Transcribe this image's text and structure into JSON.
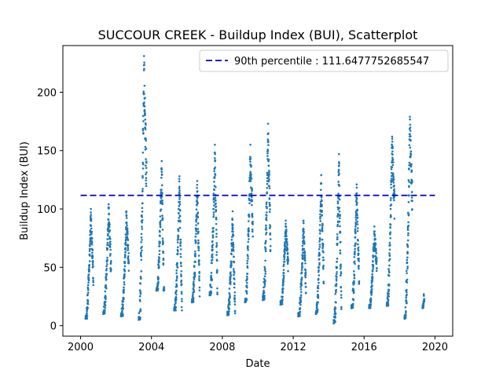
{
  "chart_data": {
    "type": "scatter",
    "title": "SUCCOUR CREEK - Buildup Index (BUI), Scatterplot",
    "xlabel": "Date",
    "ylabel": "Buildup Index (BUI)",
    "xlim": [
      1999.0,
      2021.0
    ],
    "ylim": [
      -9,
      240
    ],
    "x_ticks": [
      2000,
      2004,
      2008,
      2012,
      2016,
      2020
    ],
    "x_tick_labels": [
      "2000",
      "2004",
      "2008",
      "2012",
      "2016",
      "2020"
    ],
    "y_ticks": [
      0,
      50,
      100,
      150,
      200
    ],
    "y_tick_labels": [
      "0",
      "50",
      "100",
      "150",
      "200"
    ],
    "grid": false,
    "legend_position": "top-right",
    "point_color": "#1f77b4",
    "reference_line": {
      "label": "90th percentile : 111.6477752685547",
      "value": 111.6477752685547,
      "x_start": 2000.0,
      "x_end": 2020.0,
      "color": "#0000cc",
      "style": "dashed"
    },
    "seasons": [
      {
        "start": 2000.28,
        "end": 2000.72,
        "low": 6,
        "peak": 100,
        "end_value": 48
      },
      {
        "start": 2001.28,
        "end": 2001.72,
        "low": 10,
        "peak": 104,
        "end_value": 55
      },
      {
        "start": 2002.28,
        "end": 2002.72,
        "low": 8,
        "peak": 98,
        "end_value": 60
      },
      {
        "start": 2003.28,
        "end": 2003.72,
        "low": 5,
        "peak": 231,
        "end_value": 140
      },
      {
        "start": 2004.28,
        "end": 2004.72,
        "low": 30,
        "peak": 141,
        "end_value": 15
      },
      {
        "start": 2005.28,
        "end": 2005.72,
        "low": 13,
        "peak": 128,
        "end_value": 20
      },
      {
        "start": 2006.28,
        "end": 2006.72,
        "low": 20,
        "peak": 124,
        "end_value": 40
      },
      {
        "start": 2007.28,
        "end": 2007.72,
        "low": 26,
        "peak": 155,
        "end_value": 40
      },
      {
        "start": 2008.28,
        "end": 2008.72,
        "low": 9,
        "peak": 98,
        "end_value": 20
      },
      {
        "start": 2009.28,
        "end": 2009.72,
        "low": 20,
        "peak": 155,
        "end_value": 95
      },
      {
        "start": 2010.28,
        "end": 2010.72,
        "low": 22,
        "peak": 173,
        "end_value": 80
      },
      {
        "start": 2011.28,
        "end": 2011.72,
        "low": 18,
        "peak": 90,
        "end_value": 55
      },
      {
        "start": 2012.28,
        "end": 2012.72,
        "low": 8,
        "peak": 90,
        "end_value": 40
      },
      {
        "start": 2013.28,
        "end": 2013.72,
        "low": 10,
        "peak": 129,
        "end_value": 55
      },
      {
        "start": 2014.28,
        "end": 2014.72,
        "low": 2,
        "peak": 147,
        "end_value": 30
      },
      {
        "start": 2015.28,
        "end": 2015.72,
        "low": 15,
        "peak": 121,
        "end_value": 45
      },
      {
        "start": 2016.28,
        "end": 2016.72,
        "low": 15,
        "peak": 85,
        "end_value": 55
      },
      {
        "start": 2017.28,
        "end": 2017.72,
        "low": 17,
        "peak": 162,
        "end_value": 110
      },
      {
        "start": 2018.28,
        "end": 2018.72,
        "low": 6,
        "peak": 179,
        "end_value": 120
      },
      {
        "start": 2019.3,
        "end": 2019.4,
        "low": 15,
        "peak": 27,
        "end_value": 22
      }
    ]
  }
}
